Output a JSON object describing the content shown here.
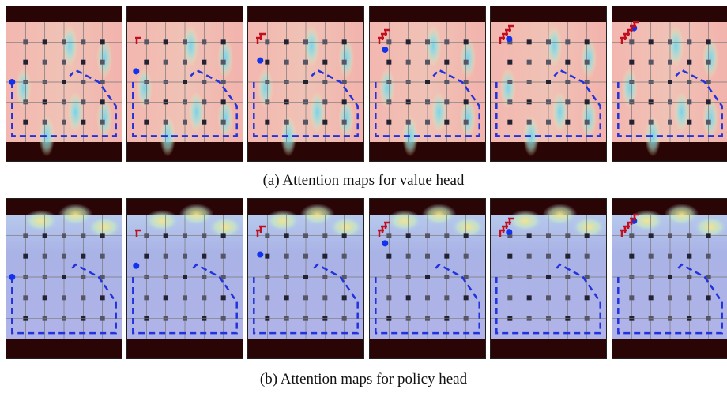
{
  "figures": [
    {
      "caption": "(a) Attention maps for value head"
    },
    {
      "caption": "(b) Attention maps for policy head"
    }
  ]
}
